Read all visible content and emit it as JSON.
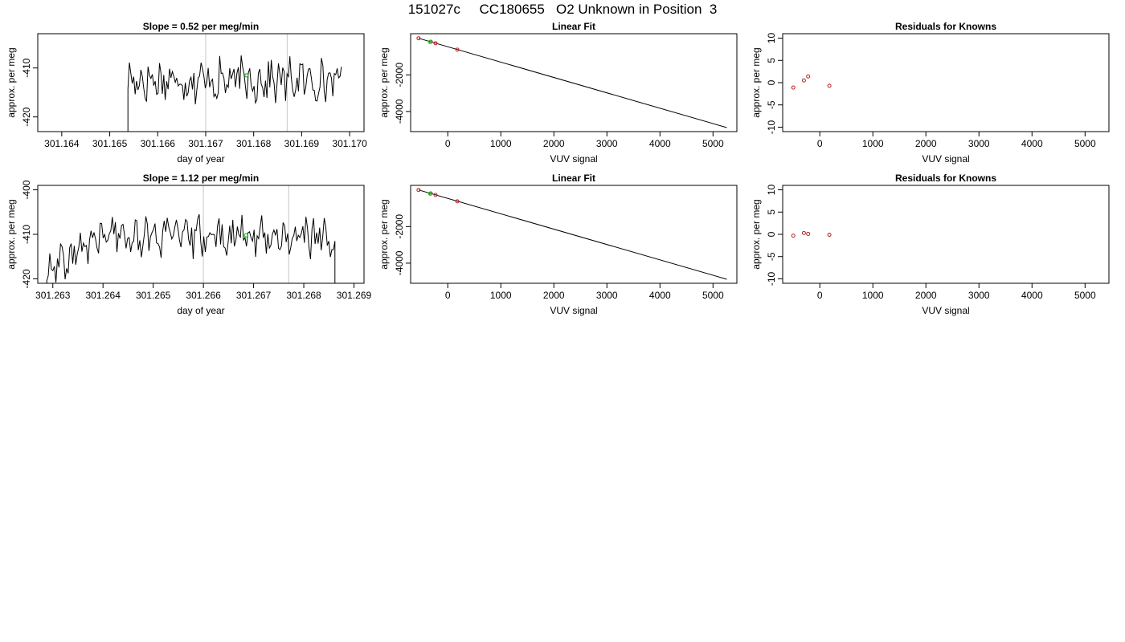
{
  "page": {
    "title": "151027c     CC180655   O2 Unknown in Position  3"
  },
  "colors": {
    "trace": "#000000",
    "known_point": "#b22222",
    "unknown_point": "#22c022",
    "vline": "#d0d0d0",
    "axis": "#000000"
  },
  "chart_data": [
    {
      "type": "line",
      "title": "Slope =  0.52  per meg/min",
      "xlabel": "day of year",
      "ylabel": "approx. per meg",
      "xlim": [
        301.1635,
        301.1703
      ],
      "ylim": [
        -423,
        -403
      ],
      "xticks": [
        301.164,
        301.165,
        301.166,
        301.167,
        301.168,
        301.169,
        301.17
      ],
      "xtick_labels": [
        "301.164",
        "301.165",
        "301.166",
        "301.167",
        "301.168",
        "301.169",
        "301.170"
      ],
      "yticks": [
        -410,
        -420
      ],
      "ytick_labels": [
        "-410",
        "-420"
      ],
      "vlines": [
        301.167,
        301.1687
      ],
      "trace_start": 301.16538,
      "trace_end": 301.16983,
      "trace_baseline": -412.5,
      "trace_amplitude": 3.5,
      "trace_points": 150,
      "unknown_point": {
        "x": 301.16785,
        "y": -411.5
      }
    },
    {
      "type": "scatter",
      "title": "Linear Fit",
      "xlabel": "VUV signal",
      "ylabel": "approx. per meg",
      "xlim": [
        -700,
        5450
      ],
      "ylim": [
        -5100,
        250
      ],
      "xticks": [
        0,
        1000,
        2000,
        3000,
        4000,
        5000
      ],
      "xtick_labels": [
        "0",
        "1000",
        "2000",
        "3000",
        "4000",
        "5000"
      ],
      "yticks": [
        -2000,
        -4000
      ],
      "ytick_labels": [
        "-2000",
        "-4000"
      ],
      "fit_line": {
        "x": [
          -550,
          5260
        ],
        "y": [
          0,
          -4880
        ]
      },
      "knowns": {
        "x": [
          -550,
          -320,
          -230,
          180
        ],
        "y": [
          0,
          -190,
          -270,
          -620
        ]
      },
      "unknowns": {
        "x": [
          -330
        ],
        "y": [
          -200
        ]
      }
    },
    {
      "type": "scatter",
      "title": "Residuals for Knowns",
      "xlabel": "VUV signal",
      "ylabel": "approx. per meg",
      "xlim": [
        -700,
        5450
      ],
      "ylim": [
        -11,
        11
      ],
      "xticks": [
        0,
        1000,
        2000,
        3000,
        4000,
        5000
      ],
      "xtick_labels": [
        "0",
        "1000",
        "2000",
        "3000",
        "4000",
        "5000"
      ],
      "yticks": [
        10,
        5,
        0,
        -5,
        -10
      ],
      "ytick_labels": [
        "10",
        "5",
        "0",
        "-5",
        "-10"
      ],
      "knowns": {
        "x": [
          -500,
          -300,
          -220,
          180
        ],
        "y": [
          -1.1,
          0.5,
          1.4,
          -0.7
        ]
      }
    },
    {
      "type": "line",
      "title": "Slope =  1.12  per meg/min",
      "xlabel": "day of year",
      "ylabel": "approx. per meg",
      "xlim": [
        301.2627,
        301.2692
      ],
      "ylim": [
        -421,
        -399
      ],
      "xticks": [
        301.263,
        301.264,
        301.265,
        301.266,
        301.267,
        301.268,
        301.269
      ],
      "xtick_labels": [
        "301.263",
        "301.264",
        "301.265",
        "301.266",
        "301.267",
        "301.268",
        "301.269"
      ],
      "yticks": [
        -400,
        -410,
        -420
      ],
      "ytick_labels": [
        "-400",
        "-410",
        "-420"
      ],
      "vlines": [
        301.266,
        301.2677
      ],
      "trace_start": 301.26288,
      "trace_end": 301.26862,
      "trace_baseline": -410.5,
      "trace_amplitude": 3.5,
      "trace_points": 190,
      "unknown_point": {
        "x": 301.26685,
        "y": -410.2
      }
    },
    {
      "type": "scatter",
      "title": "Linear Fit",
      "xlabel": "VUV signal",
      "ylabel": "approx. per meg",
      "xlim": [
        -700,
        5450
      ],
      "ylim": [
        -5100,
        250
      ],
      "xticks": [
        0,
        1000,
        2000,
        3000,
        4000,
        5000
      ],
      "xtick_labels": [
        "0",
        "1000",
        "2000",
        "3000",
        "4000",
        "5000"
      ],
      "yticks": [
        -2000,
        -4000
      ],
      "ytick_labels": [
        "-2000",
        "-4000"
      ],
      "fit_line": {
        "x": [
          -550,
          5260
        ],
        "y": [
          0,
          -4880
        ]
      },
      "knowns": {
        "x": [
          -550,
          -320,
          -230,
          180
        ],
        "y": [
          0,
          -190,
          -270,
          -620
        ]
      },
      "unknowns": {
        "x": [
          -330
        ],
        "y": [
          -200
        ]
      }
    },
    {
      "type": "scatter",
      "title": "Residuals for Knowns",
      "xlabel": "VUV signal",
      "ylabel": "approx. per meg",
      "xlim": [
        -700,
        5450
      ],
      "ylim": [
        -11,
        11
      ],
      "xticks": [
        0,
        1000,
        2000,
        3000,
        4000,
        5000
      ],
      "xtick_labels": [
        "0",
        "1000",
        "2000",
        "3000",
        "4000",
        "5000"
      ],
      "yticks": [
        10,
        5,
        0,
        -5,
        -10
      ],
      "ytick_labels": [
        "10",
        "5",
        "0",
        "-5",
        "-10"
      ],
      "knowns": {
        "x": [
          -500,
          -300,
          -220,
          180
        ],
        "y": [
          -0.3,
          0.3,
          0.1,
          -0.1
        ]
      }
    }
  ]
}
